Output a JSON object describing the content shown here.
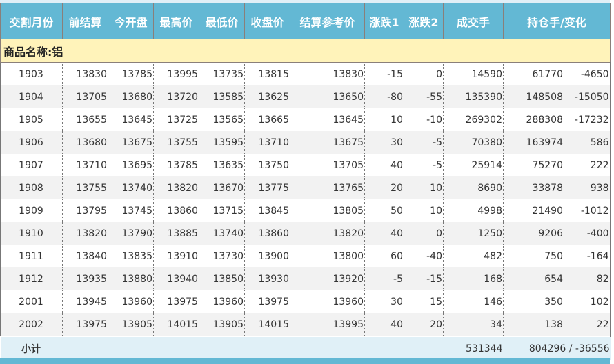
{
  "headers": [
    "交割月份",
    "前结算",
    "今开盘",
    "最高价",
    "最低价",
    "收盘价",
    "结算参考价",
    "涨跌1",
    "涨跌2",
    "成交手",
    "持仓手/变化"
  ],
  "category": "商品名称:铝",
  "rows": [
    [
      "1903",
      "13830",
      "13785",
      "13995",
      "13735",
      "13815",
      "13830",
      "-15",
      "0",
      "14590",
      "61770",
      "-4650"
    ],
    [
      "1904",
      "13705",
      "13680",
      "13720",
      "13585",
      "13625",
      "13650",
      "-80",
      "-55",
      "135390",
      "148508",
      "-15050"
    ],
    [
      "1905",
      "13655",
      "13645",
      "13725",
      "13565",
      "13665",
      "13645",
      "10",
      "-10",
      "269302",
      "288308",
      "-17232"
    ],
    [
      "1906",
      "13680",
      "13675",
      "13755",
      "13595",
      "13710",
      "13675",
      "30",
      "-5",
      "70380",
      "163974",
      "586"
    ],
    [
      "1907",
      "13710",
      "13695",
      "13785",
      "13635",
      "13750",
      "13705",
      "40",
      "-5",
      "25914",
      "75270",
      "222"
    ],
    [
      "1908",
      "13755",
      "13740",
      "13820",
      "13670",
      "13775",
      "13765",
      "20",
      "10",
      "8690",
      "33878",
      "938"
    ],
    [
      "1909",
      "13795",
      "13745",
      "13860",
      "13715",
      "13845",
      "13805",
      "50",
      "10",
      "4998",
      "21490",
      "-1012"
    ],
    [
      "1910",
      "13820",
      "13790",
      "13885",
      "13740",
      "13860",
      "13820",
      "40",
      "0",
      "1250",
      "9206",
      "-400"
    ],
    [
      "1911",
      "13840",
      "13835",
      "13910",
      "13730",
      "13900",
      "13800",
      "60",
      "-40",
      "482",
      "750",
      "-164"
    ],
    [
      "1912",
      "13935",
      "13880",
      "13940",
      "13850",
      "13930",
      "13920",
      "-5",
      "-15",
      "168",
      "654",
      "82"
    ],
    [
      "2001",
      "13945",
      "13960",
      "13975",
      "13960",
      "13975",
      "13960",
      "30",
      "15",
      "146",
      "350",
      "102"
    ],
    [
      "2002",
      "13975",
      "13905",
      "14015",
      "13905",
      "14015",
      "13995",
      "40",
      "20",
      "34",
      "138",
      "22"
    ]
  ],
  "subtotal": {
    "label": "小计",
    "volume": "531344",
    "open_interest": "804296 / -36556"
  },
  "colors": {
    "header": "#63b8d4",
    "category": "#fff3ba",
    "subtotal": "#e0f0f7"
  }
}
